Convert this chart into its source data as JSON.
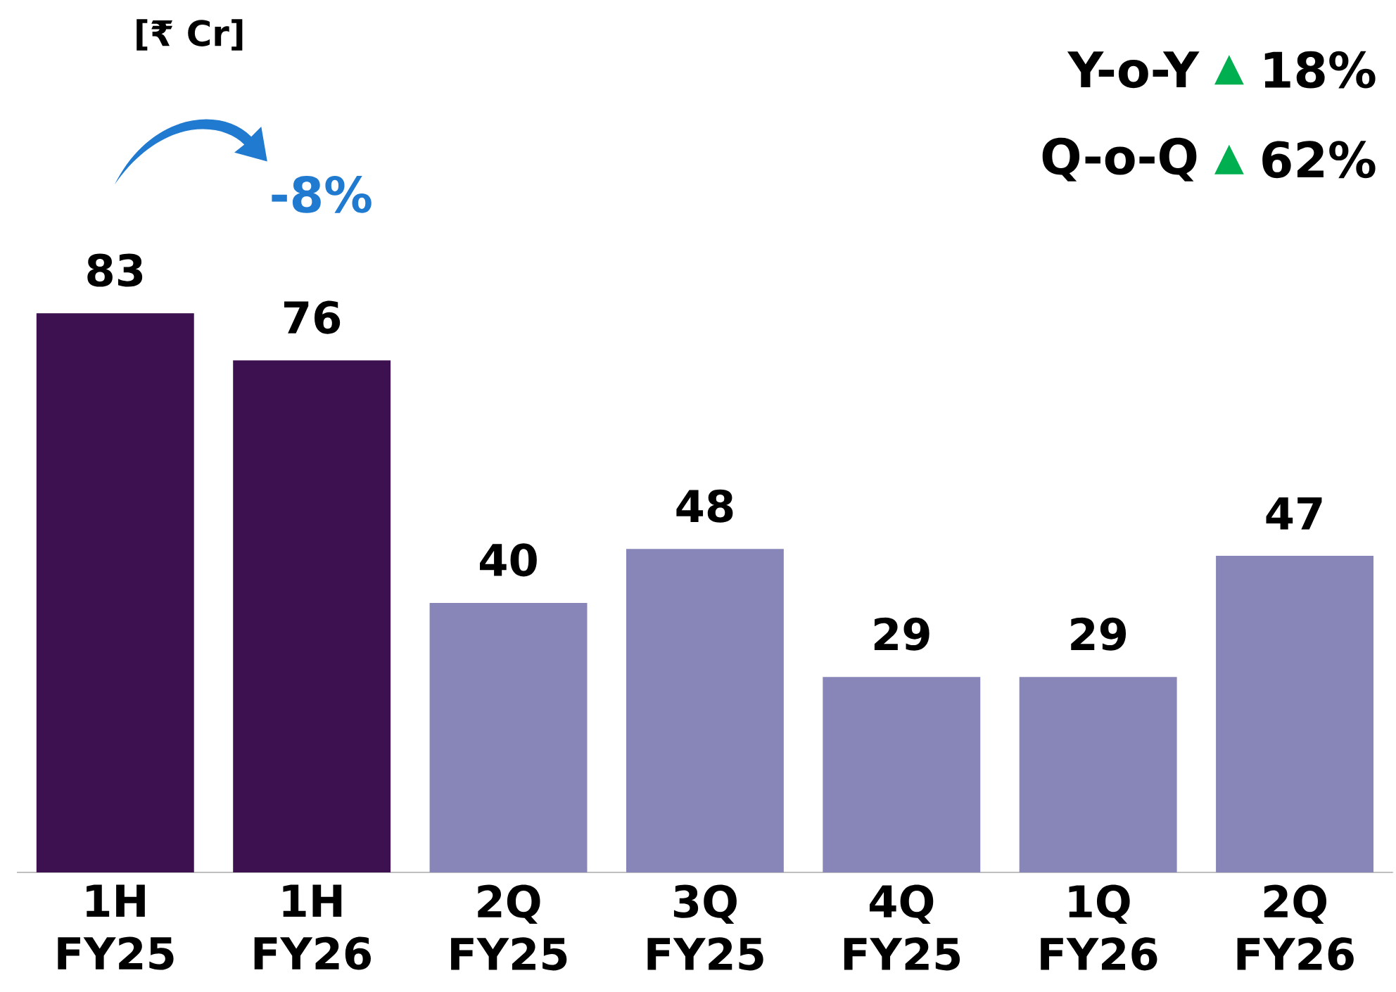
{
  "chart_data": {
    "type": "bar",
    "categories": [
      "1H FY25",
      "1H FY26",
      "2Q FY25",
      "3Q FY25",
      "4Q FY25",
      "1Q FY26",
      "2Q FY26"
    ],
    "values": [
      83,
      76,
      40,
      48,
      29,
      29,
      47
    ],
    "colors": [
      "#3d1050",
      "#3d1050",
      "#8886b8",
      "#8886b8",
      "#8886b8",
      "#8886b8",
      "#8886b8"
    ],
    "data_labels": true,
    "annotations": [
      "[₹ Cr]",
      "-8%",
      "Y-o-Y",
      "▲",
      "18%",
      "Q-o-Q",
      "▲",
      "62%"
    ]
  }
}
